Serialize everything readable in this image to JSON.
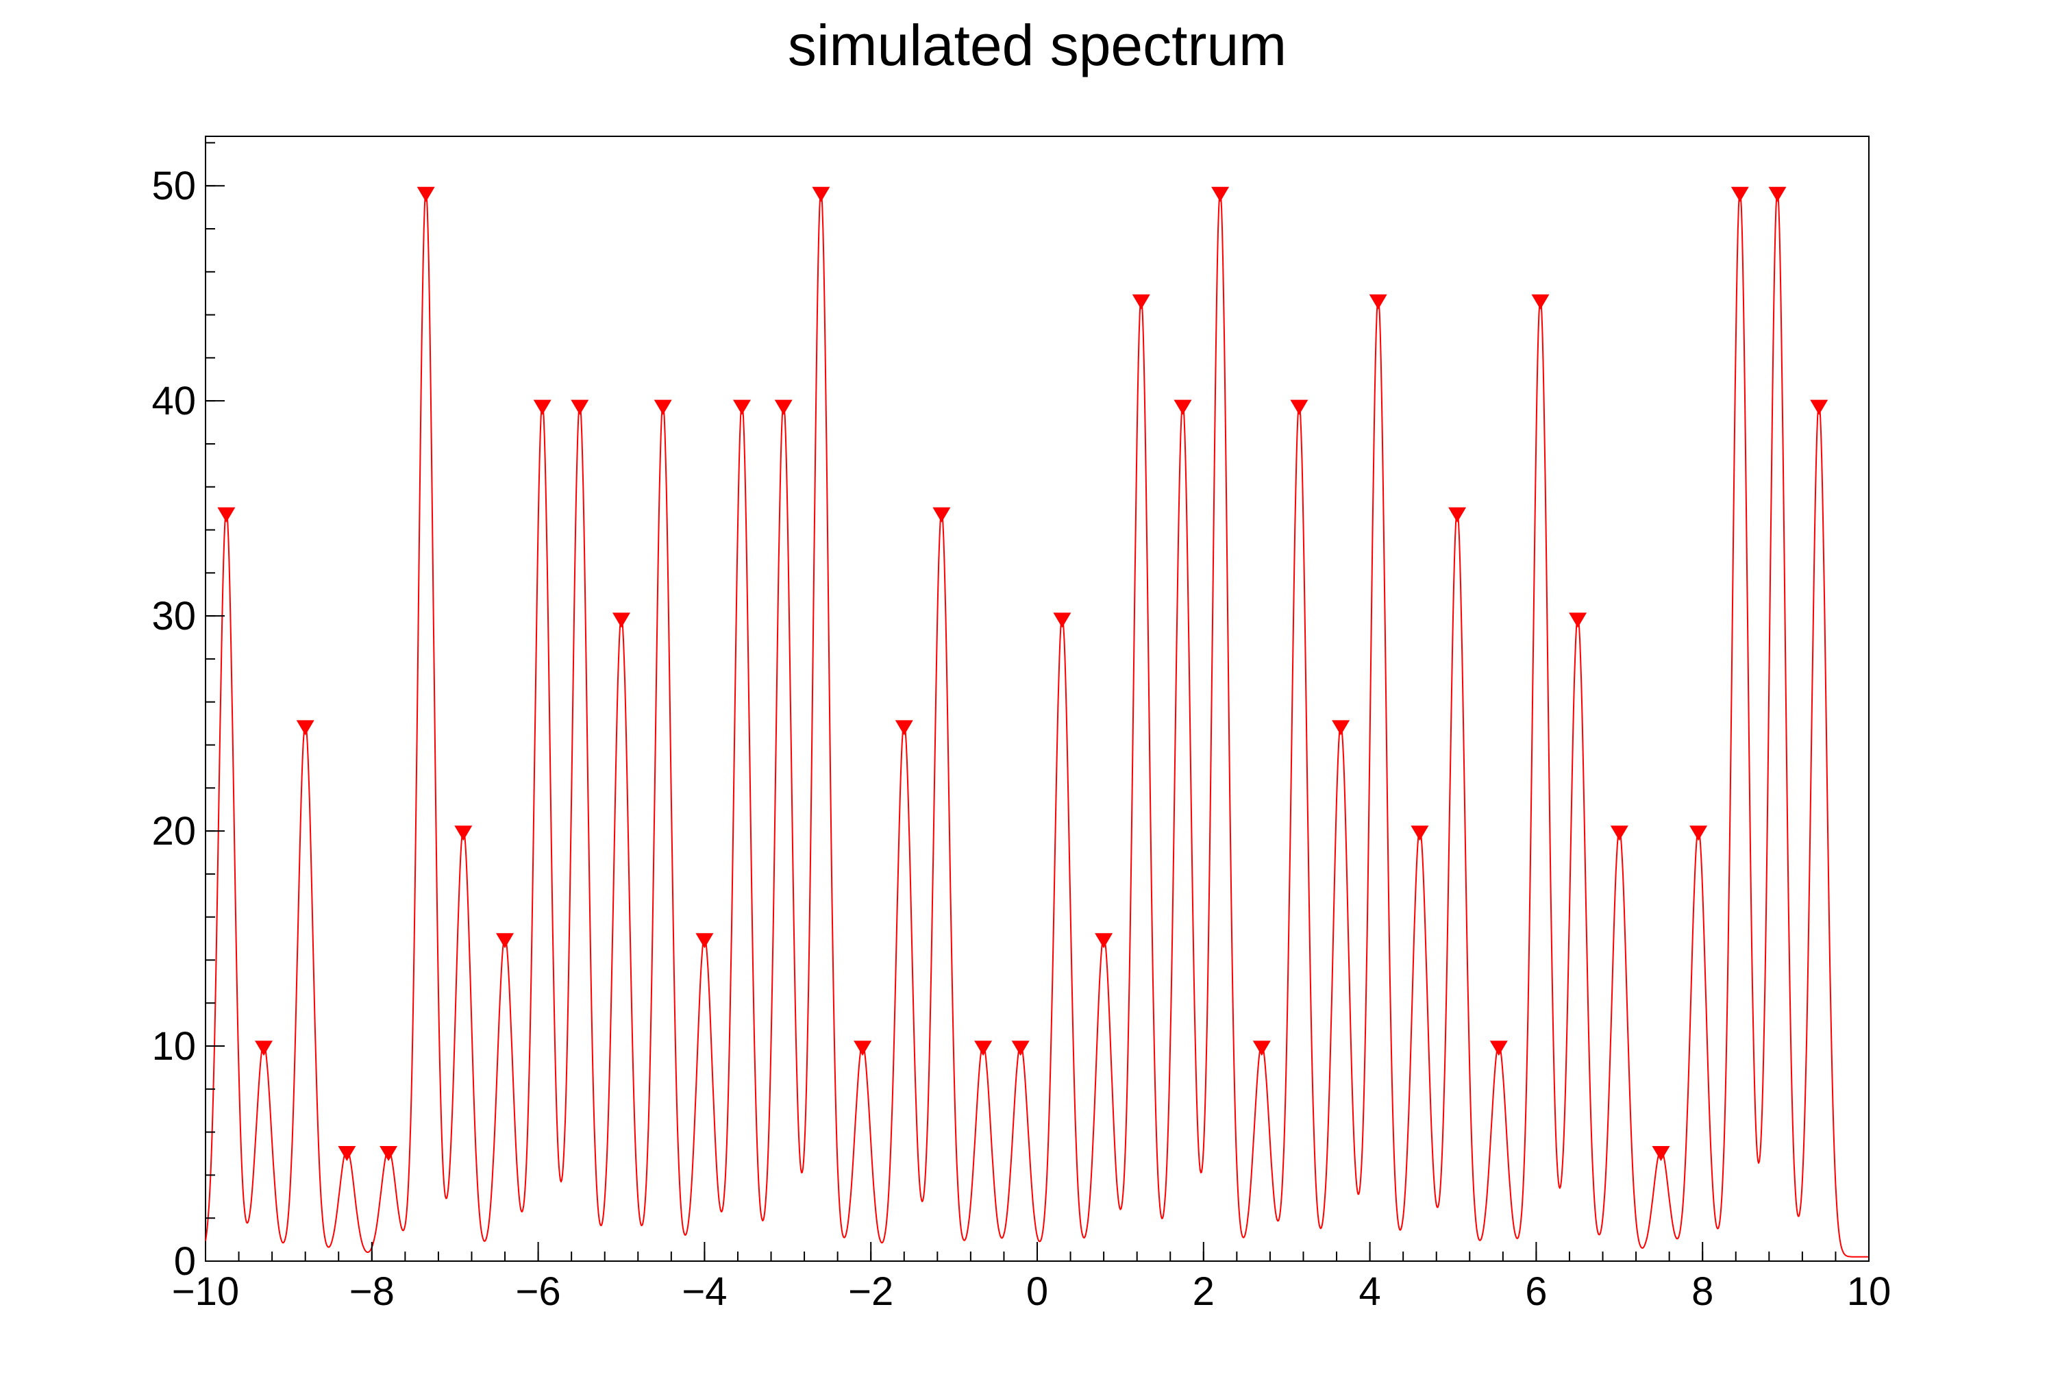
{
  "title": "simulated spectrum",
  "chart_data": {
    "type": "line",
    "title": "simulated spectrum",
    "xlabel": "",
    "ylabel": "",
    "xlim": [
      -10,
      10
    ],
    "ylim": [
      0,
      52.3
    ],
    "x_ticks": [
      -10,
      -8,
      -6,
      -4,
      -2,
      0,
      2,
      4,
      6,
      8,
      10
    ],
    "x_tick_labels": [
      "−10",
      "−8",
      "−6",
      "−4",
      "−2",
      "0",
      "2",
      "4",
      "6",
      "8",
      "10"
    ],
    "y_ticks": [
      0,
      10,
      20,
      30,
      40,
      50
    ],
    "y_tick_labels": [
      "0",
      "10",
      "20",
      "30",
      "40",
      "50"
    ],
    "x_minor_step": 0.4,
    "y_minor_step": 2,
    "grid": false,
    "legend": "none",
    "line_color": "#ff0000",
    "marker_color": "#ff0000",
    "marker": "triangle-down",
    "peak_sigma": 0.09,
    "baseline": 0.2,
    "peaks": [
      {
        "x": -9.75,
        "y": 34.7
      },
      {
        "x": -9.3,
        "y": 9.9
      },
      {
        "x": -8.8,
        "y": 24.8
      },
      {
        "x": -8.3,
        "y": 5.0
      },
      {
        "x": -7.8,
        "y": 5.0
      },
      {
        "x": -7.35,
        "y": 49.6
      },
      {
        "x": -6.9,
        "y": 19.9
      },
      {
        "x": -6.4,
        "y": 14.9
      },
      {
        "x": -5.95,
        "y": 39.7
      },
      {
        "x": -5.5,
        "y": 39.7
      },
      {
        "x": -5.0,
        "y": 29.8
      },
      {
        "x": -4.5,
        "y": 39.7
      },
      {
        "x": -4.0,
        "y": 14.9
      },
      {
        "x": -3.55,
        "y": 39.7
      },
      {
        "x": -3.05,
        "y": 39.7
      },
      {
        "x": -2.6,
        "y": 49.6
      },
      {
        "x": -2.1,
        "y": 9.9
      },
      {
        "x": -1.6,
        "y": 24.8
      },
      {
        "x": -1.15,
        "y": 34.7
      },
      {
        "x": -0.65,
        "y": 9.9
      },
      {
        "x": -0.2,
        "y": 9.9
      },
      {
        "x": 0.3,
        "y": 29.8
      },
      {
        "x": 0.8,
        "y": 14.9
      },
      {
        "x": 1.25,
        "y": 44.6
      },
      {
        "x": 1.75,
        "y": 39.7
      },
      {
        "x": 2.2,
        "y": 49.6
      },
      {
        "x": 2.7,
        "y": 9.9
      },
      {
        "x": 3.15,
        "y": 39.7
      },
      {
        "x": 3.65,
        "y": 24.8
      },
      {
        "x": 4.1,
        "y": 44.6
      },
      {
        "x": 4.6,
        "y": 19.9
      },
      {
        "x": 5.05,
        "y": 34.7
      },
      {
        "x": 5.55,
        "y": 9.9
      },
      {
        "x": 6.05,
        "y": 44.6
      },
      {
        "x": 6.5,
        "y": 29.8
      },
      {
        "x": 7.0,
        "y": 19.9
      },
      {
        "x": 7.5,
        "y": 5.0
      },
      {
        "x": 7.95,
        "y": 19.9
      },
      {
        "x": 8.45,
        "y": 49.6
      },
      {
        "x": 8.9,
        "y": 49.6
      },
      {
        "x": 9.4,
        "y": 39.7
      }
    ]
  }
}
